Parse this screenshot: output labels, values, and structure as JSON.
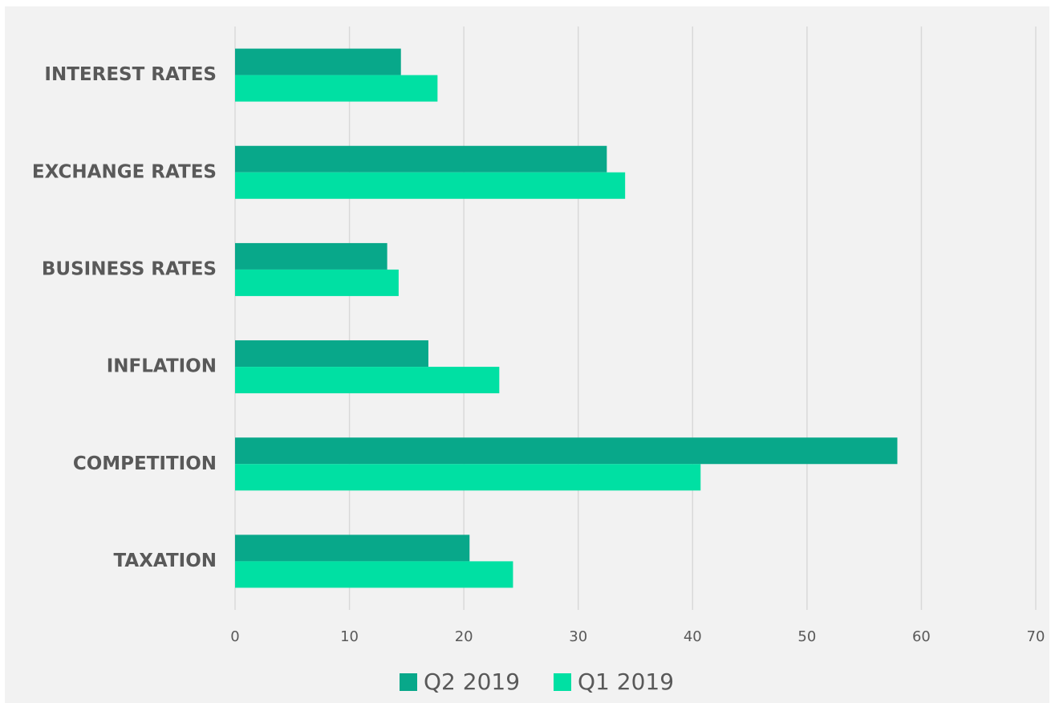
{
  "chart_data": {
    "type": "hbar",
    "categories": [
      "INTEREST RATES",
      "EXCHANGE RATES",
      "BUSINESS RATES",
      "INFLATION",
      "COMPETITION",
      "TAXATION"
    ],
    "series": [
      {
        "name": "Q2 2019",
        "color": "#08a88a",
        "values": [
          14.5,
          32.5,
          13.3,
          16.9,
          57.9,
          20.5
        ]
      },
      {
        "name": "Q1 2019",
        "color": "#00e0a3",
        "values": [
          17.7,
          34.1,
          14.3,
          23.1,
          40.7,
          24.3
        ]
      }
    ],
    "xlim": [
      0,
      70
    ],
    "xticks": [
      0,
      10,
      20,
      30,
      40,
      50,
      60,
      70
    ],
    "grid": true,
    "legend": "bottom"
  }
}
